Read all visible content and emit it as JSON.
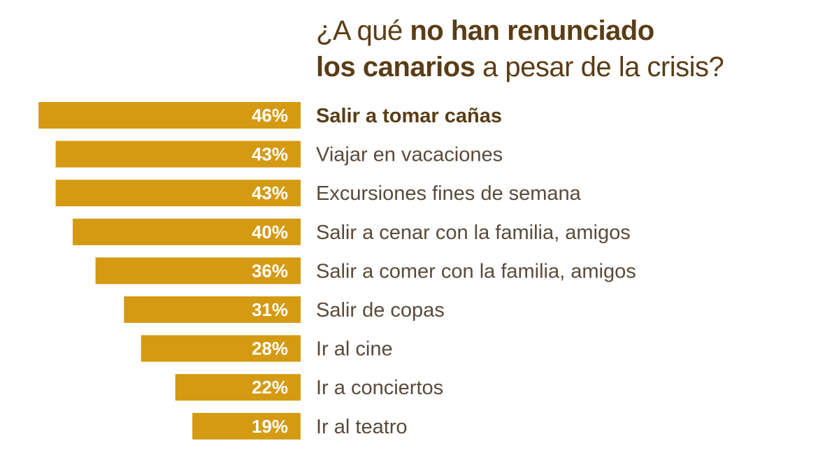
{
  "title": {
    "line1_prefix": "¿A qué ",
    "line1_bold": "no han renunciado",
    "line2_bold": "los canarios",
    "line2_suffix": " a pesar de la crisis?"
  },
  "colors": {
    "bar": "#d49a12",
    "title": "#5a3d15",
    "label": "#5a4a3a"
  },
  "chart_data": {
    "type": "bar",
    "orientation": "horizontal",
    "title": "¿A qué no han renunciado los canarios a pesar de la crisis?",
    "categories": [
      "Salir a tomar cañas",
      "Viajar en vacaciones",
      "Excursiones fines de semana",
      "Salir a cenar con la familia, amigos",
      "Salir a comer con la familia, amigos",
      "Salir de copas",
      "Ir al cine",
      "Ir a conciertos",
      "Ir al teatro"
    ],
    "values": [
      46,
      43,
      43,
      40,
      36,
      31,
      28,
      22,
      19
    ],
    "value_labels": [
      "46%",
      "43%",
      "43%",
      "40%",
      "36%",
      "31%",
      "28%",
      "22%",
      "19%"
    ],
    "unit": "%",
    "grid": false,
    "legend": "none"
  }
}
